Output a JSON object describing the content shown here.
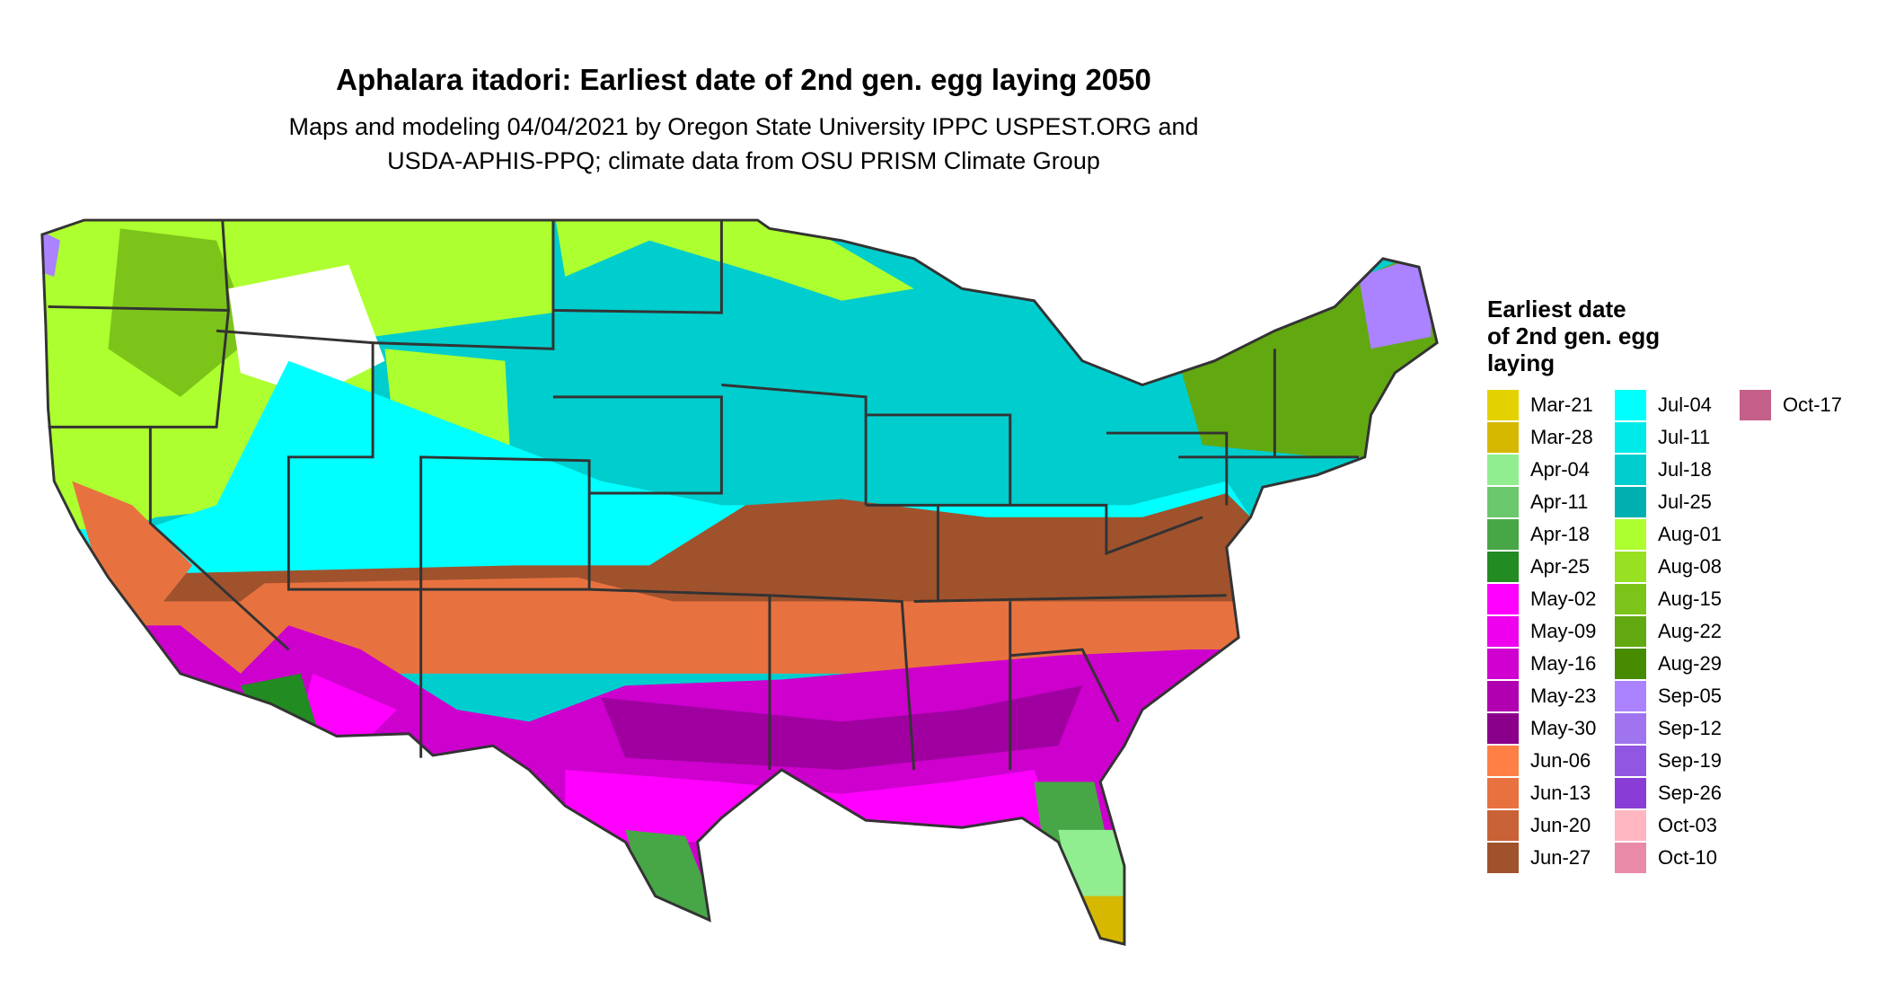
{
  "header": {
    "title": "Aphalara itadori: Earliest date of 2nd gen. egg laying 2050",
    "subtitle_lines": [
      "Maps and modeling 04/04/2021 by Oregon State University IPPC USPEST.ORG and",
      "USDA-APHIS-PPQ; climate data from OSU PRISM Climate Group"
    ]
  },
  "legend": {
    "title_lines": [
      "Earliest date",
      "of 2nd gen. egg",
      "laying"
    ],
    "items": [
      {
        "label": "Mar-21",
        "color": "#e3d200"
      },
      {
        "label": "Mar-28",
        "color": "#d6b800"
      },
      {
        "label": "Apr-04",
        "color": "#90ee90"
      },
      {
        "label": "Apr-11",
        "color": "#6cc86c"
      },
      {
        "label": "Apr-18",
        "color": "#47a747"
      },
      {
        "label": "Apr-25",
        "color": "#228b22"
      },
      {
        "label": "May-02",
        "color": "#ff00ff"
      },
      {
        "label": "May-09",
        "color": "#ee00ee"
      },
      {
        "label": "May-16",
        "color": "#d000d0"
      },
      {
        "label": "May-23",
        "color": "#b000b0"
      },
      {
        "label": "May-30",
        "color": "#8b008b"
      },
      {
        "label": "Jun-06",
        "color": "#ff7f45"
      },
      {
        "label": "Jun-13",
        "color": "#e8723f"
      },
      {
        "label": "Jun-20",
        "color": "#c96236"
      },
      {
        "label": "Jun-27",
        "color": "#a0522d"
      },
      {
        "label": "Jul-04",
        "color": "#00ffff"
      },
      {
        "label": "Jul-11",
        "color": "#00eaea"
      },
      {
        "label": "Jul-18",
        "color": "#00cdcd"
      },
      {
        "label": "Jul-25",
        "color": "#00b0b0"
      },
      {
        "label": "Aug-01",
        "color": "#adff2f"
      },
      {
        "label": "Aug-08",
        "color": "#97e022"
      },
      {
        "label": "Aug-15",
        "color": "#7cc41a"
      },
      {
        "label": "Aug-22",
        "color": "#62a811"
      },
      {
        "label": "Aug-29",
        "color": "#468b00"
      },
      {
        "label": "Sep-05",
        "color": "#ab82ff"
      },
      {
        "label": "Sep-12",
        "color": "#9f74ee"
      },
      {
        "label": "Sep-19",
        "color": "#9157e2"
      },
      {
        "label": "Sep-26",
        "color": "#8a3dd6"
      },
      {
        "label": "Oct-03",
        "color": "#ffb6c1"
      },
      {
        "label": "Oct-10",
        "color": "#e88aa8"
      },
      {
        "label": "Oct-17",
        "color": "#c45f8a"
      }
    ]
  }
}
